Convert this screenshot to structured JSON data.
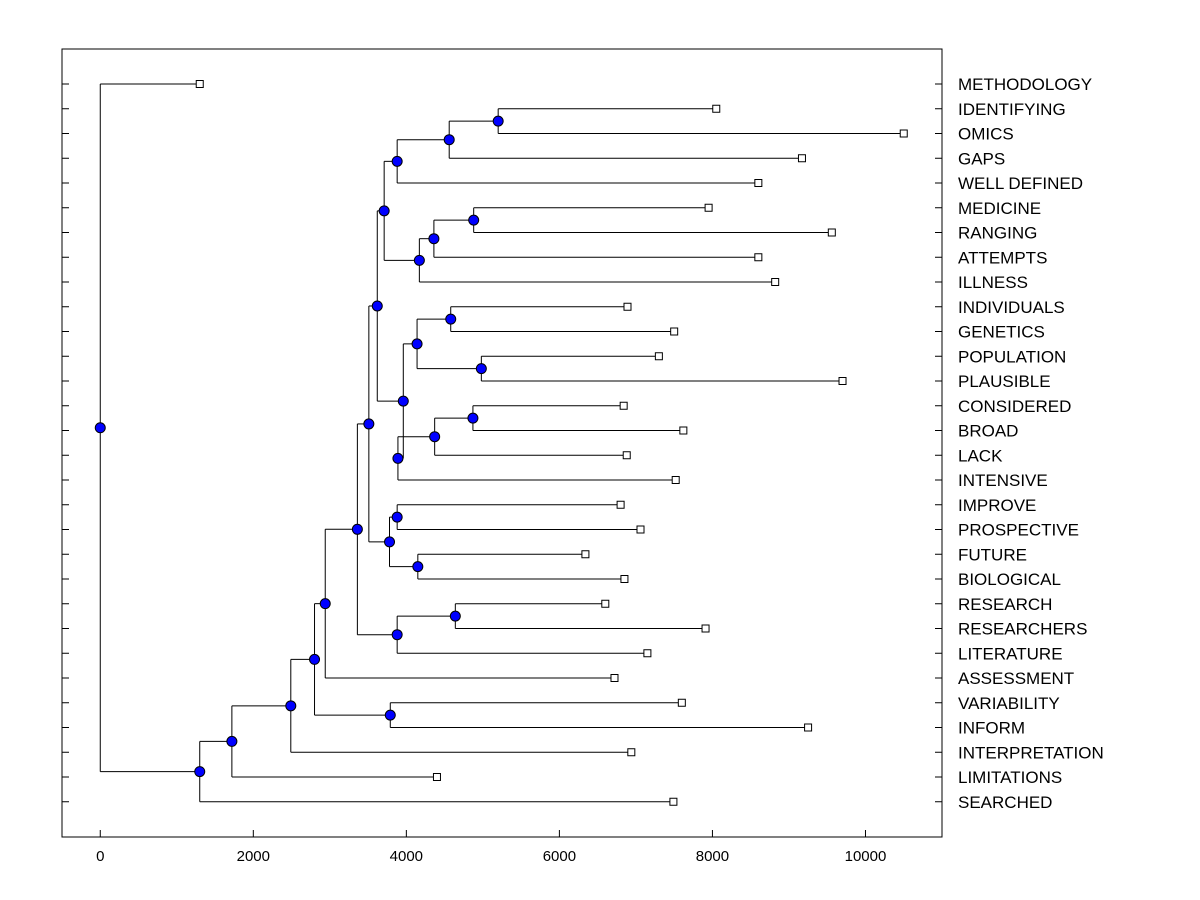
{
  "chart_data": {
    "type": "dendrogram",
    "orientation": "horizontal",
    "xlim": [
      -500,
      11000
    ],
    "xticks": [
      0,
      2000,
      4000,
      6000,
      8000,
      10000
    ],
    "node_color": "#0000ff",
    "leaves": [
      {
        "label": "METHODOLOGY",
        "value": 1300
      },
      {
        "label": "IDENTIFYING",
        "value": 8050
      },
      {
        "label": "OMICS",
        "value": 10500
      },
      {
        "label": "GAPS",
        "value": 9170
      },
      {
        "label": "WELL DEFINED",
        "value": 8600
      },
      {
        "label": "MEDICINE",
        "value": 7950
      },
      {
        "label": "RANGING",
        "value": 9560
      },
      {
        "label": "ATTEMPTS",
        "value": 8600
      },
      {
        "label": "ILLNESS",
        "value": 8820
      },
      {
        "label": "INDIVIDUALS",
        "value": 6890
      },
      {
        "label": "GENETICS",
        "value": 7500
      },
      {
        "label": "POPULATION",
        "value": 7300
      },
      {
        "label": "PLAUSIBLE",
        "value": 9700
      },
      {
        "label": "CONSIDERED",
        "value": 6840
      },
      {
        "label": "BROAD",
        "value": 7620
      },
      {
        "label": "LACK",
        "value": 6880
      },
      {
        "label": "INTENSIVE",
        "value": 7520
      },
      {
        "label": "IMPROVE",
        "value": 6800
      },
      {
        "label": "PROSPECTIVE",
        "value": 7060
      },
      {
        "label": "FUTURE",
        "value": 6340
      },
      {
        "label": "BIOLOGICAL",
        "value": 6850
      },
      {
        "label": "RESEARCH",
        "value": 6600
      },
      {
        "label": "RESEARCHERS",
        "value": 7910
      },
      {
        "label": "LITERATURE",
        "value": 7150
      },
      {
        "label": "ASSESSMENT",
        "value": 6720
      },
      {
        "label": "VARIABILITY",
        "value": 7600
      },
      {
        "label": "INFORM",
        "value": 9250
      },
      {
        "label": "INTERPRETATION",
        "value": 6940
      },
      {
        "label": "LIMITATIONS",
        "value": 4400
      },
      {
        "label": "SEARCHED",
        "value": 7490
      }
    ],
    "merges": [
      {
        "id": "n1",
        "children": [
          "IDENTIFYING",
          "OMICS"
        ],
        "value": 5200
      },
      {
        "id": "n2",
        "children": [
          "n1",
          "GAPS"
        ],
        "value": 4560
      },
      {
        "id": "n3",
        "children": [
          "n2",
          "WELL DEFINED"
        ],
        "value": 3880
      },
      {
        "id": "n4",
        "children": [
          "MEDICINE",
          "RANGING"
        ],
        "value": 4880
      },
      {
        "id": "n5",
        "children": [
          "n4",
          "ATTEMPTS"
        ],
        "value": 4360
      },
      {
        "id": "n6",
        "children": [
          "n5",
          "ILLNESS"
        ],
        "value": 4170
      },
      {
        "id": "n7",
        "children": [
          "n3",
          "n6"
        ],
        "value": 3710
      },
      {
        "id": "n8",
        "children": [
          "INDIVIDUALS",
          "GENETICS"
        ],
        "value": 4580
      },
      {
        "id": "n9",
        "children": [
          "POPULATION",
          "PLAUSIBLE"
        ],
        "value": 4980
      },
      {
        "id": "n10",
        "children": [
          "n8",
          "n9"
        ],
        "value": 4140
      },
      {
        "id": "n11",
        "children": [
          "CONSIDERED",
          "BROAD"
        ],
        "value": 4870
      },
      {
        "id": "n12",
        "children": [
          "n11",
          "LACK"
        ],
        "value": 4370
      },
      {
        "id": "n13",
        "children": [
          "n12",
          "INTENSIVE"
        ],
        "value": 3890
      },
      {
        "id": "n14",
        "children": [
          "n10",
          "n13"
        ],
        "value": 3960
      },
      {
        "id": "n15",
        "children": [
          "n7",
          "n14"
        ],
        "value": 3620
      },
      {
        "id": "n16",
        "children": [
          "IMPROVE",
          "PROSPECTIVE"
        ],
        "value": 3880
      },
      {
        "id": "n17",
        "children": [
          "FUTURE",
          "BIOLOGICAL"
        ],
        "value": 4150
      },
      {
        "id": "n18",
        "children": [
          "n16",
          "n17"
        ],
        "value": 3780
      },
      {
        "id": "n19",
        "children": [
          "n15",
          "n18"
        ],
        "value": 3510
      },
      {
        "id": "n20",
        "children": [
          "RESEARCH",
          "RESEARCHERS"
        ],
        "value": 4640
      },
      {
        "id": "n21",
        "children": [
          "n20",
          "LITERATURE"
        ],
        "value": 3880
      },
      {
        "id": "n22",
        "children": [
          "n19",
          "n21"
        ],
        "value": 3360
      },
      {
        "id": "n23",
        "children": [
          "n22",
          "ASSESSMENT"
        ],
        "value": 2940
      },
      {
        "id": "n24",
        "children": [
          "VARIABILITY",
          "INFORM"
        ],
        "value": 3790
      },
      {
        "id": "n25",
        "children": [
          "n23",
          "n24"
        ],
        "value": 2800
      },
      {
        "id": "n26",
        "children": [
          "n25",
          "INTERPRETATION"
        ],
        "value": 2490
      },
      {
        "id": "n27",
        "children": [
          "n26",
          "LIMITATIONS"
        ],
        "value": 1720
      },
      {
        "id": "n28",
        "children": [
          "n27",
          "SEARCHED"
        ],
        "value": 1300
      },
      {
        "id": "n29",
        "children": [
          "METHODOLOGY",
          "n28"
        ],
        "value": 0
      }
    ]
  }
}
